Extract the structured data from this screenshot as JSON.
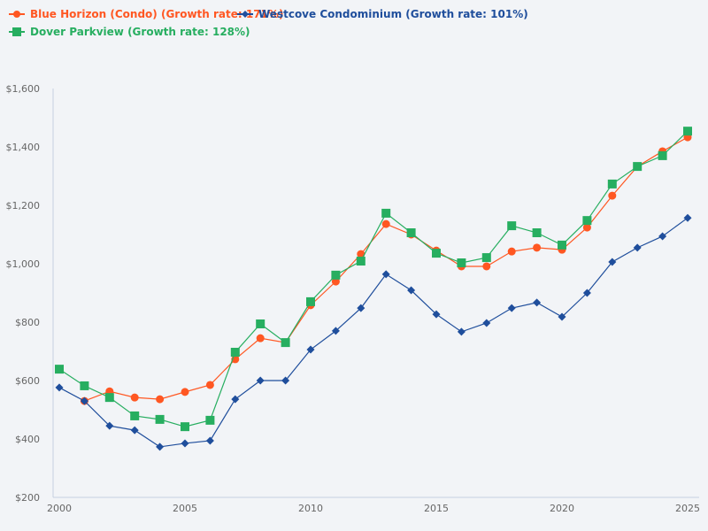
{
  "chart_data": {
    "type": "line",
    "title": "",
    "xlabel": "",
    "ylabel": "",
    "x": [
      2000,
      2001,
      2002,
      2003,
      2004,
      2005,
      2006,
      2007,
      2008,
      2009,
      2010,
      2011,
      2012,
      2013,
      2014,
      2015,
      2016,
      2017,
      2018,
      2019,
      2020,
      2021,
      2022,
      2023,
      2024,
      2025
    ],
    "xlim": [
      2000,
      2025
    ],
    "ylim": [
      200,
      1600
    ],
    "x_ticks": [
      "2000",
      "2005",
      "2010",
      "2015",
      "2020",
      "2025"
    ],
    "y_ticks": [
      "$200",
      "$400",
      "$600",
      "$800",
      "$1,000",
      "$1,200",
      "$1,400",
      "$1,600"
    ],
    "grid": false,
    "legend_position": "top-left",
    "series": [
      {
        "name": "Blue Horizon (Condo) (Growth rate: 171%)",
        "color": "#ff5722",
        "marker": "circle",
        "values": [
          null,
          530,
          563,
          542,
          536,
          561,
          585,
          673,
          745,
          730,
          858,
          939,
          1033,
          1136,
          1100,
          1045,
          991,
          991,
          1042,
          1055,
          1048,
          1124,
          1233,
          1333,
          1385,
          1433
        ]
      },
      {
        "name": "Westcove Condominium (Growth rate: 101%)",
        "color": "#1f4e9c",
        "marker": "diamond",
        "values": [
          576,
          530,
          445,
          430,
          373,
          385,
          394,
          536,
          600,
          600,
          706,
          770,
          848,
          964,
          909,
          827,
          767,
          797,
          848,
          867,
          818,
          900,
          1006,
          1055,
          1094,
          1157
        ]
      },
      {
        "name": "Dover Parkview (Growth rate: 128%)",
        "color": "#27ae60",
        "marker": "square",
        "values": [
          639,
          582,
          542,
          479,
          467,
          442,
          464,
          697,
          794,
          730,
          870,
          961,
          1009,
          1173,
          1106,
          1036,
          1003,
          1021,
          1130,
          1106,
          1064,
          1148,
          1273,
          1333,
          1370,
          1454
        ]
      }
    ]
  }
}
